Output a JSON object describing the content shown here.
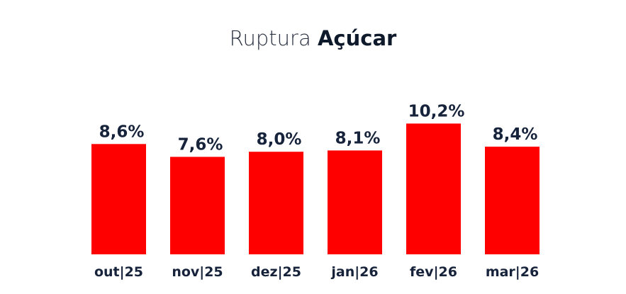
{
  "title": {
    "light": "Ruptura",
    "bold": "Açúcar"
  },
  "colors": {
    "bar": "#ff0000",
    "text": "#16233a"
  },
  "chart_data": {
    "type": "bar",
    "title": "Ruptura Açúcar",
    "categories": [
      "out|25",
      "nov|25",
      "dez|25",
      "jan|26",
      "fev|26",
      "mar|26"
    ],
    "values": [
      8.6,
      7.6,
      8.0,
      8.1,
      10.2,
      8.4
    ],
    "labels": [
      "8,6%",
      "7,6%",
      "8,0%",
      "8,1%",
      "10,2%",
      "8,4%"
    ],
    "xlabel": "",
    "ylabel": "",
    "grid": false,
    "legend": "none"
  }
}
